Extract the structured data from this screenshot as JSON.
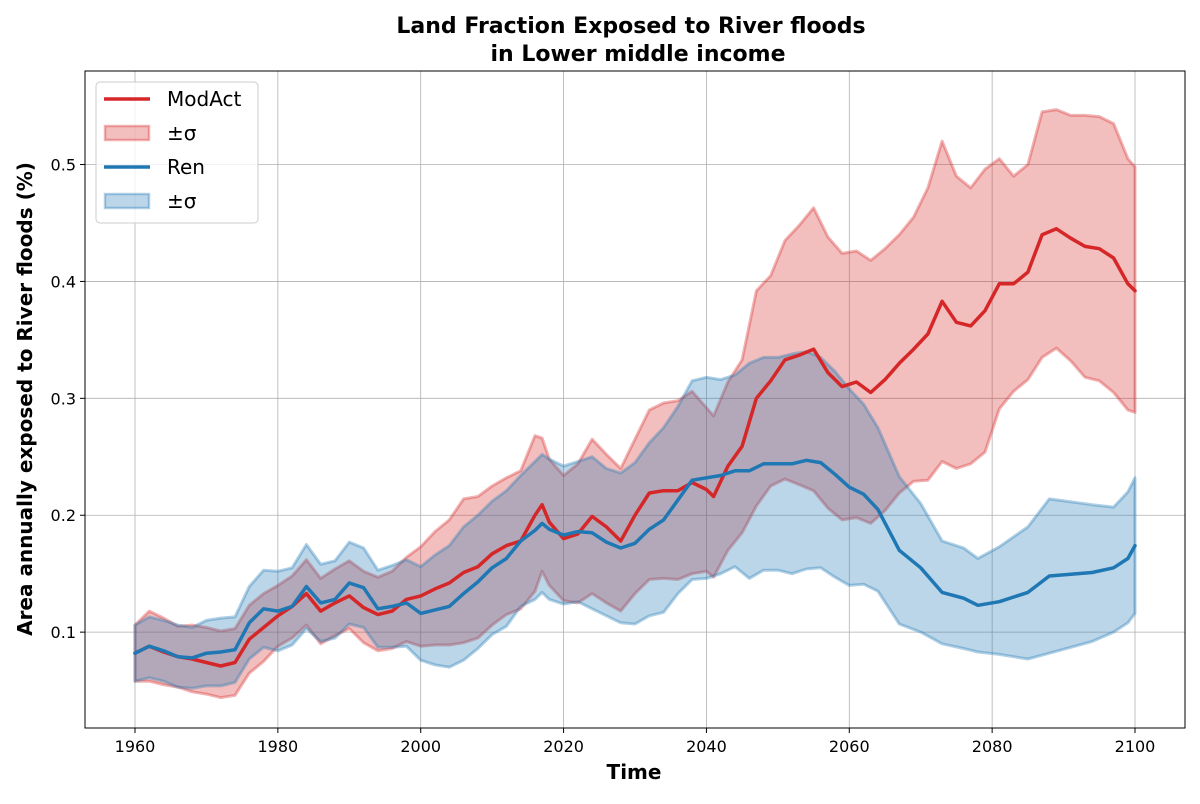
{
  "chart_data": {
    "type": "line",
    "title_line1": "Land Fraction Exposed to River floods",
    "title_line2": "in Lower middle income",
    "xlabel": "Time",
    "ylabel": "Area annually exposed to River floods (%)",
    "xlim": [
      1953,
      2107
    ],
    "ylim": [
      0.018,
      0.58
    ],
    "xticks": [
      1960,
      1980,
      2000,
      2020,
      2040,
      2060,
      2080,
      2100
    ],
    "xtick_labels": [
      "1960",
      "1980",
      "2000",
      "2020",
      "2040",
      "2060",
      "2080",
      "2100"
    ],
    "yticks": [
      0.1,
      0.2,
      0.3,
      0.4,
      0.5
    ],
    "ytick_labels": [
      "0.1",
      "0.2",
      "0.3",
      "0.4",
      "0.5"
    ],
    "grid": true,
    "legend_position": "top-left",
    "legend": [
      {
        "label": "ModAct",
        "kind": "line",
        "series": 0
      },
      {
        "label": "±σ",
        "kind": "band",
        "series": 0
      },
      {
        "label": "Ren",
        "kind": "line",
        "series": 1
      },
      {
        "label": "±σ",
        "kind": "band",
        "series": 1
      }
    ],
    "series": [
      {
        "name": "ModAct",
        "color": "#d62728",
        "x": [
          1960,
          1962,
          1964,
          1966,
          1968,
          1970,
          1972,
          1974,
          1976,
          1978,
          1980,
          1982,
          1984,
          1986,
          1988,
          1990,
          1992,
          1994,
          1996,
          1998,
          2000,
          2002,
          2004,
          2006,
          2008,
          2010,
          2012,
          2014,
          2016,
          2017,
          2018,
          2020,
          2022,
          2024,
          2026,
          2028,
          2030,
          2032,
          2034,
          2036,
          2038,
          2040,
          2041,
          2043,
          2045,
          2047,
          2049,
          2051,
          2053,
          2055,
          2057,
          2059,
          2061,
          2063,
          2065,
          2067,
          2069,
          2071,
          2073,
          2075,
          2077,
          2079,
          2081,
          2083,
          2085,
          2087,
          2089,
          2091,
          2093,
          2095,
          2097,
          2099,
          2100
        ],
        "y": [
          0.082,
          0.088,
          0.083,
          0.079,
          0.077,
          0.074,
          0.071,
          0.074,
          0.094,
          0.104,
          0.114,
          0.122,
          0.133,
          0.118,
          0.125,
          0.131,
          0.121,
          0.115,
          0.118,
          0.128,
          0.131,
          0.137,
          0.142,
          0.151,
          0.156,
          0.167,
          0.174,
          0.178,
          0.2,
          0.209,
          0.194,
          0.18,
          0.184,
          0.199,
          0.19,
          0.178,
          0.2,
          0.219,
          0.221,
          0.221,
          0.228,
          0.222,
          0.216,
          0.242,
          0.259,
          0.3,
          0.315,
          0.333,
          0.337,
          0.342,
          0.322,
          0.31,
          0.314,
          0.305,
          0.316,
          0.33,
          0.342,
          0.355,
          0.383,
          0.365,
          0.362,
          0.375,
          0.398,
          0.398,
          0.408,
          0.44,
          0.445,
          0.437,
          0.43,
          0.428,
          0.42,
          0.398,
          0.392
        ],
        "upper": [
          0.106,
          0.118,
          0.112,
          0.105,
          0.106,
          0.104,
          0.101,
          0.103,
          0.123,
          0.133,
          0.14,
          0.148,
          0.162,
          0.146,
          0.154,
          0.161,
          0.152,
          0.147,
          0.152,
          0.164,
          0.173,
          0.186,
          0.196,
          0.214,
          0.216,
          0.225,
          0.232,
          0.238,
          0.268,
          0.266,
          0.248,
          0.234,
          0.244,
          0.265,
          0.252,
          0.24,
          0.265,
          0.29,
          0.296,
          0.298,
          0.306,
          0.292,
          0.285,
          0.314,
          0.333,
          0.392,
          0.405,
          0.435,
          0.448,
          0.463,
          0.438,
          0.424,
          0.426,
          0.418,
          0.428,
          0.44,
          0.455,
          0.48,
          0.52,
          0.49,
          0.48,
          0.496,
          0.505,
          0.49,
          0.5,
          0.545,
          0.547,
          0.542,
          0.542,
          0.541,
          0.535,
          0.505,
          0.498
        ],
        "lower": [
          0.058,
          0.058,
          0.055,
          0.053,
          0.049,
          0.047,
          0.044,
          0.046,
          0.065,
          0.075,
          0.088,
          0.095,
          0.106,
          0.09,
          0.097,
          0.103,
          0.091,
          0.084,
          0.086,
          0.092,
          0.088,
          0.089,
          0.089,
          0.091,
          0.095,
          0.106,
          0.115,
          0.12,
          0.135,
          0.152,
          0.14,
          0.127,
          0.125,
          0.133,
          0.125,
          0.118,
          0.133,
          0.145,
          0.146,
          0.145,
          0.15,
          0.152,
          0.147,
          0.17,
          0.185,
          0.208,
          0.225,
          0.231,
          0.226,
          0.221,
          0.206,
          0.196,
          0.198,
          0.193,
          0.204,
          0.219,
          0.229,
          0.23,
          0.246,
          0.24,
          0.244,
          0.254,
          0.291,
          0.306,
          0.316,
          0.335,
          0.343,
          0.332,
          0.318,
          0.315,
          0.305,
          0.29,
          0.288
        ]
      },
      {
        "name": "Ren",
        "color": "#1f77b4",
        "x": [
          1960,
          1962,
          1964,
          1966,
          1968,
          1970,
          1972,
          1974,
          1976,
          1978,
          1980,
          1982,
          1984,
          1986,
          1988,
          1990,
          1992,
          1994,
          1996,
          1998,
          2000,
          2002,
          2004,
          2006,
          2008,
          2010,
          2012,
          2014,
          2016,
          2017,
          2018,
          2020,
          2022,
          2024,
          2026,
          2028,
          2030,
          2032,
          2034,
          2036,
          2038,
          2040,
          2042,
          2044,
          2046,
          2048,
          2050,
          2052,
          2054,
          2056,
          2058,
          2060,
          2062,
          2064,
          2067,
          2070,
          2073,
          2076,
          2078,
          2081,
          2085,
          2088,
          2094,
          2097,
          2099,
          2100
        ],
        "y": [
          0.082,
          0.088,
          0.084,
          0.079,
          0.078,
          0.082,
          0.083,
          0.085,
          0.108,
          0.12,
          0.118,
          0.122,
          0.139,
          0.125,
          0.128,
          0.142,
          0.138,
          0.12,
          0.122,
          0.125,
          0.116,
          0.119,
          0.122,
          0.133,
          0.143,
          0.155,
          0.163,
          0.178,
          0.187,
          0.193,
          0.188,
          0.183,
          0.186,
          0.185,
          0.177,
          0.172,
          0.176,
          0.188,
          0.196,
          0.213,
          0.23,
          0.232,
          0.234,
          0.238,
          0.238,
          0.244,
          0.244,
          0.244,
          0.247,
          0.245,
          0.235,
          0.224,
          0.218,
          0.205,
          0.17,
          0.155,
          0.134,
          0.129,
          0.123,
          0.126,
          0.134,
          0.148,
          0.151,
          0.155,
          0.163,
          0.174
        ],
        "upper": [
          0.106,
          0.113,
          0.11,
          0.106,
          0.104,
          0.11,
          0.112,
          0.113,
          0.139,
          0.153,
          0.152,
          0.155,
          0.175,
          0.158,
          0.161,
          0.177,
          0.172,
          0.153,
          0.157,
          0.162,
          0.156,
          0.166,
          0.174,
          0.19,
          0.2,
          0.212,
          0.221,
          0.234,
          0.246,
          0.252,
          0.248,
          0.242,
          0.246,
          0.25,
          0.24,
          0.236,
          0.245,
          0.262,
          0.275,
          0.293,
          0.315,
          0.318,
          0.316,
          0.32,
          0.33,
          0.335,
          0.335,
          0.338,
          0.34,
          0.335,
          0.323,
          0.308,
          0.295,
          0.275,
          0.233,
          0.21,
          0.178,
          0.172,
          0.163,
          0.173,
          0.19,
          0.214,
          0.209,
          0.207,
          0.22,
          0.232
        ],
        "lower": [
          0.058,
          0.061,
          0.058,
          0.053,
          0.052,
          0.054,
          0.054,
          0.057,
          0.077,
          0.087,
          0.084,
          0.089,
          0.103,
          0.092,
          0.095,
          0.107,
          0.104,
          0.087,
          0.087,
          0.088,
          0.076,
          0.072,
          0.07,
          0.076,
          0.086,
          0.098,
          0.105,
          0.122,
          0.128,
          0.134,
          0.128,
          0.124,
          0.126,
          0.12,
          0.114,
          0.108,
          0.107,
          0.114,
          0.117,
          0.133,
          0.145,
          0.146,
          0.15,
          0.156,
          0.146,
          0.153,
          0.153,
          0.15,
          0.154,
          0.155,
          0.147,
          0.14,
          0.141,
          0.135,
          0.107,
          0.1,
          0.09,
          0.086,
          0.083,
          0.081,
          0.077,
          0.082,
          0.092,
          0.1,
          0.108,
          0.116
        ]
      }
    ]
  }
}
